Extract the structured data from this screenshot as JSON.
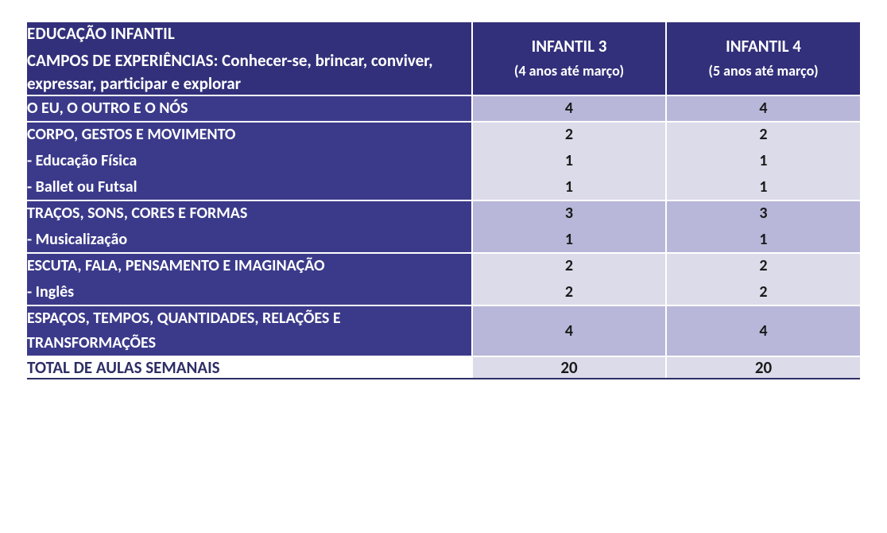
{
  "colors": {
    "hdr_bg": "#32307a",
    "hdr_fg": "#ffffff",
    "left_bg": "#3b3a8a",
    "left_fg": "#ffffff",
    "shade_a": "#b8b7d9",
    "shade_b": "#dcdbea",
    "val_fg": "#1a1a1a",
    "total_fg": "#2e2e66",
    "total_border": "#2e2e66"
  },
  "header": {
    "title": "EDUCAÇÃO INFANTIL",
    "subtitle": "CAMPOS DE EXPERIÊNCIAS: Conhecer-se, brincar, conviver, expressar, participar e explorar",
    "col1_title": "INFANTIL 3",
    "col1_sub": "(4 anos até março)",
    "col2_title": "INFANTIL 4",
    "col2_sub": "(5 anos até março)"
  },
  "groups": [
    {
      "shade": "a",
      "lines": [
        {
          "label": " O EU, O OUTRO E O NÓS",
          "v1": "4",
          "v2": "4"
        }
      ]
    },
    {
      "shade": "b",
      "lines": [
        {
          "label": "CORPO, GESTOS E MOVIMENTO",
          "v1": "2",
          "v2": "2"
        },
        {
          "label": "- Educação Física",
          "v1": "1",
          "v2": "1"
        },
        {
          "label": "- Ballet ou Futsal",
          "v1": "1",
          "v2": "1"
        }
      ]
    },
    {
      "shade": "a",
      "lines": [
        {
          "label": "TRAÇOS, SONS, CORES E FORMAS",
          "v1": "3",
          "v2": "3"
        },
        {
          "label": "- Musicalização",
          "v1": "1",
          "v2": "1"
        }
      ]
    },
    {
      "shade": "b",
      "lines": [
        {
          "label": "ESCUTA, FALA, PENSAMENTO E IMAGINAÇÃO",
          "v1": "2",
          "v2": "2"
        },
        {
          "label": "- Inglês",
          "v1": "2",
          "v2": "2"
        }
      ]
    },
    {
      "shade": "a",
      "lines": [
        {
          "label": "ESPAÇOS, TEMPOS, QUANTIDADES, RELAÇÕES E TRANSFORMAÇÕES",
          "v1": "4",
          "v2": "4"
        }
      ]
    }
  ],
  "total": {
    "label": "TOTAL DE AULAS SEMANAIS",
    "v1": "20",
    "v2": "20"
  }
}
